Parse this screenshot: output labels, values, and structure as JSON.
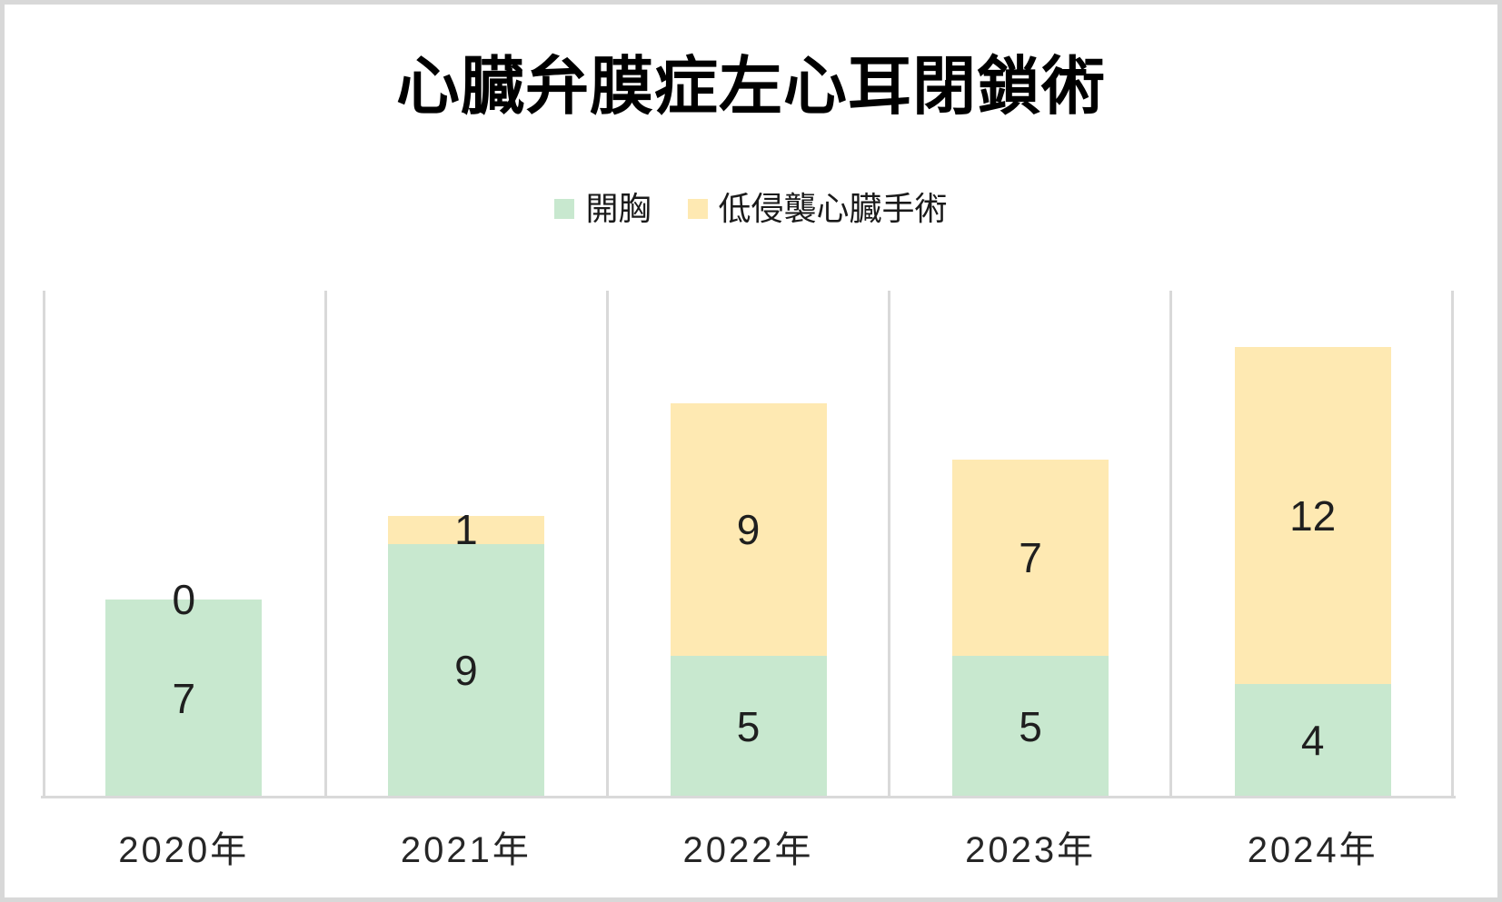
{
  "page": {
    "background": "#ffffff",
    "border_color": "#d8d8d8"
  },
  "chart_data": {
    "type": "bar",
    "stacked": true,
    "title": "心臓弁膜症左心耳閉鎖術",
    "categories": [
      "2020年",
      "2021年",
      "2022年",
      "2023年",
      "2024年"
    ],
    "series": [
      {
        "name": "開胸",
        "color": "#c8e8cf",
        "values": [
          7,
          9,
          5,
          5,
          4
        ]
      },
      {
        "name": "低侵襲心臓手術",
        "color": "#fee9b2",
        "values": [
          0,
          1,
          9,
          7,
          12
        ]
      }
    ],
    "data_labels": true,
    "label_color": "#1f1f1f",
    "xlabel": "",
    "ylabel": "",
    "ylim": [
      0,
      18
    ],
    "y_axis_visible": false,
    "legend_position": "top-center",
    "grid": {
      "vertical_category_separators": true,
      "horizontal": false,
      "color": "#d9d9d9"
    },
    "axis_line_color": "#d9d9d9"
  }
}
